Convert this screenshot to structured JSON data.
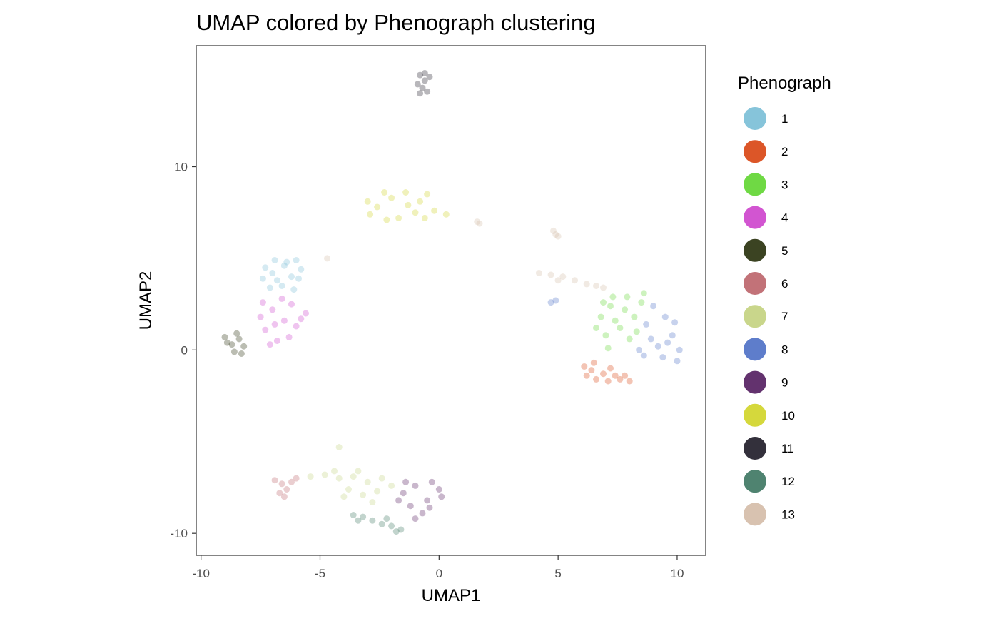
{
  "chart_data": {
    "type": "scatter",
    "title": "UMAP colored by Phenograph clustering",
    "xlabel": "UMAP1",
    "ylabel": "UMAP2",
    "xlim": [
      -10.2,
      11.2
    ],
    "ylim": [
      -11.2,
      16.6
    ],
    "x_ticks": [
      {
        "value": -10,
        "label": "-10"
      },
      {
        "value": -5,
        "label": "-5"
      },
      {
        "value": 0,
        "label": "0"
      },
      {
        "value": 5,
        "label": "5"
      },
      {
        "value": 10,
        "label": "10"
      }
    ],
    "y_ticks": [
      {
        "value": -10,
        "label": "-10"
      },
      {
        "value": 0,
        "label": "0"
      },
      {
        "value": 10,
        "label": "10"
      }
    ],
    "grid": false,
    "point_alpha": 0.35,
    "legend": {
      "title": "Phenograph",
      "position": "right",
      "entries": [
        {
          "label": "1",
          "color": "#86c4da"
        },
        {
          "label": "2",
          "color": "#dc5628"
        },
        {
          "label": "3",
          "color": "#6fd944"
        },
        {
          "label": "4",
          "color": "#d255d1"
        },
        {
          "label": "5",
          "color": "#3b4322"
        },
        {
          "label": "6",
          "color": "#c27278"
        },
        {
          "label": "7",
          "color": "#c9d68b"
        },
        {
          "label": "8",
          "color": "#5e7dcb"
        },
        {
          "label": "9",
          "color": "#63326e"
        },
        {
          "label": "10",
          "color": "#d5d83c"
        },
        {
          "label": "11",
          "color": "#33303b"
        },
        {
          "label": "12",
          "color": "#4f8370"
        },
        {
          "label": "13",
          "color": "#d8c2b0"
        }
      ]
    },
    "series": [
      {
        "name": "1",
        "color": "#86c4da",
        "points": [
          [
            -7.0,
            4.2
          ],
          [
            -6.5,
            4.6
          ],
          [
            -6.0,
            4.9
          ],
          [
            -6.8,
            3.8
          ],
          [
            -6.2,
            4.0
          ],
          [
            -7.3,
            4.5
          ],
          [
            -5.8,
            4.4
          ],
          [
            -6.6,
            3.5
          ],
          [
            -6.4,
            4.8
          ],
          [
            -7.1,
            3.4
          ],
          [
            -5.9,
            3.9
          ],
          [
            -6.9,
            4.9
          ],
          [
            -6.1,
            3.3
          ],
          [
            -7.4,
            3.9
          ]
        ]
      },
      {
        "name": "2",
        "color": "#dc5628",
        "points": [
          [
            6.2,
            -1.4
          ],
          [
            6.6,
            -1.6
          ],
          [
            7.1,
            -1.7
          ],
          [
            7.6,
            -1.6
          ],
          [
            8.0,
            -1.7
          ],
          [
            6.4,
            -1.1
          ],
          [
            6.9,
            -1.3
          ],
          [
            7.4,
            -1.4
          ],
          [
            6.1,
            -0.9
          ],
          [
            7.8,
            -1.4
          ],
          [
            6.5,
            -0.7
          ],
          [
            7.2,
            -1.0
          ]
        ]
      },
      {
        "name": "3",
        "color": "#6fd944",
        "points": [
          [
            6.8,
            1.8
          ],
          [
            7.2,
            2.4
          ],
          [
            7.6,
            1.2
          ],
          [
            7.9,
            2.9
          ],
          [
            8.2,
            1.8
          ],
          [
            8.5,
            2.6
          ],
          [
            7.0,
            0.8
          ],
          [
            7.4,
            1.6
          ],
          [
            8.0,
            0.6
          ],
          [
            8.6,
            3.1
          ],
          [
            7.3,
            2.9
          ],
          [
            6.6,
            1.2
          ],
          [
            7.8,
            2.2
          ],
          [
            8.3,
            1.0
          ],
          [
            7.1,
            0.1
          ],
          [
            6.9,
            2.6
          ]
        ]
      },
      {
        "name": "4",
        "color": "#d255d1",
        "points": [
          [
            -7.0,
            2.2
          ],
          [
            -6.5,
            1.6
          ],
          [
            -6.2,
            2.5
          ],
          [
            -7.3,
            1.1
          ],
          [
            -6.8,
            0.5
          ],
          [
            -6.0,
            1.3
          ],
          [
            -5.6,
            2.0
          ],
          [
            -7.5,
            1.8
          ],
          [
            -6.6,
            2.8
          ],
          [
            -6.3,
            0.7
          ],
          [
            -7.1,
            0.3
          ],
          [
            -5.8,
            1.7
          ],
          [
            -6.9,
            1.4
          ],
          [
            -7.4,
            2.6
          ]
        ]
      },
      {
        "name": "5",
        "color": "#3b4322",
        "points": [
          [
            -9.0,
            0.7
          ],
          [
            -8.7,
            0.3
          ],
          [
            -8.4,
            0.6
          ],
          [
            -8.6,
            -0.1
          ],
          [
            -8.2,
            0.2
          ],
          [
            -8.9,
            0.4
          ],
          [
            -8.5,
            0.9
          ],
          [
            -8.3,
            -0.2
          ]
        ]
      },
      {
        "name": "6",
        "color": "#c27278",
        "points": [
          [
            -6.9,
            -7.1
          ],
          [
            -6.6,
            -7.3
          ],
          [
            -6.4,
            -7.6
          ],
          [
            -6.2,
            -7.2
          ],
          [
            -6.7,
            -7.8
          ],
          [
            -6.5,
            -8.0
          ],
          [
            -6.0,
            -7.0
          ]
        ]
      },
      {
        "name": "7",
        "color": "#c9d68b",
        "points": [
          [
            -4.8,
            -6.8
          ],
          [
            -4.2,
            -7.0
          ],
          [
            -3.6,
            -6.9
          ],
          [
            -3.0,
            -7.2
          ],
          [
            -2.4,
            -7.0
          ],
          [
            -3.8,
            -7.6
          ],
          [
            -3.2,
            -7.9
          ],
          [
            -2.6,
            -7.7
          ],
          [
            -4.4,
            -6.6
          ],
          [
            -3.4,
            -6.6
          ],
          [
            -2.0,
            -7.4
          ],
          [
            -2.8,
            -8.3
          ],
          [
            -4.0,
            -8.0
          ],
          [
            -5.4,
            -6.9
          ],
          [
            -4.2,
            -5.3
          ]
        ]
      },
      {
        "name": "8",
        "color": "#5e7dcb",
        "points": [
          [
            9.0,
            2.4
          ],
          [
            9.5,
            1.8
          ],
          [
            9.8,
            0.8
          ],
          [
            9.2,
            0.2
          ],
          [
            8.7,
            1.4
          ],
          [
            10.1,
            0.0
          ],
          [
            9.4,
            -0.4
          ],
          [
            8.9,
            0.6
          ],
          [
            9.9,
            1.5
          ],
          [
            8.4,
            0.0
          ],
          [
            10.0,
            -0.6
          ],
          [
            9.6,
            0.4
          ],
          [
            8.6,
            -0.3
          ],
          [
            4.7,
            2.6
          ],
          [
            4.9,
            2.7
          ]
        ]
      },
      {
        "name": "9",
        "color": "#63326e",
        "points": [
          [
            -1.5,
            -7.8
          ],
          [
            -1.0,
            -7.4
          ],
          [
            -0.5,
            -8.2
          ],
          [
            0.0,
            -7.6
          ],
          [
            -1.2,
            -8.5
          ],
          [
            -0.7,
            -8.9
          ],
          [
            -1.7,
            -8.2
          ],
          [
            -0.3,
            -7.2
          ],
          [
            -1.0,
            -9.2
          ],
          [
            -0.4,
            -8.6
          ],
          [
            -1.4,
            -7.2
          ],
          [
            0.1,
            -8.0
          ]
        ]
      },
      {
        "name": "10",
        "color": "#d5d83c",
        "points": [
          [
            -2.6,
            7.8
          ],
          [
            -2.0,
            8.3
          ],
          [
            -1.4,
            8.6
          ],
          [
            -0.8,
            8.1
          ],
          [
            -0.2,
            7.6
          ],
          [
            0.3,
            7.4
          ],
          [
            -1.7,
            7.2
          ],
          [
            -1.0,
            7.5
          ],
          [
            -2.9,
            7.4
          ],
          [
            -2.3,
            8.6
          ],
          [
            -0.5,
            8.5
          ],
          [
            -1.3,
            7.9
          ],
          [
            -3.0,
            8.1
          ],
          [
            -0.6,
            7.2
          ],
          [
            -2.2,
            7.1
          ]
        ]
      },
      {
        "name": "11",
        "color": "#33303b",
        "points": [
          [
            -0.8,
            15.0
          ],
          [
            -0.6,
            14.7
          ],
          [
            -0.7,
            14.3
          ],
          [
            -0.5,
            14.1
          ],
          [
            -0.8,
            14.0
          ],
          [
            -0.4,
            14.9
          ],
          [
            -0.6,
            15.1
          ],
          [
            -0.9,
            14.5
          ]
        ]
      },
      {
        "name": "12",
        "color": "#4f8370",
        "points": [
          [
            -3.6,
            -9.0
          ],
          [
            -3.2,
            -9.1
          ],
          [
            -2.8,
            -9.3
          ],
          [
            -2.4,
            -9.5
          ],
          [
            -2.0,
            -9.6
          ],
          [
            -1.6,
            -9.8
          ],
          [
            -3.4,
            -9.3
          ],
          [
            -2.2,
            -9.2
          ],
          [
            -1.8,
            -9.9
          ]
        ]
      },
      {
        "name": "13",
        "color": "#d8c2b0",
        "points": [
          [
            4.2,
            4.2
          ],
          [
            4.7,
            4.1
          ],
          [
            5.2,
            4.0
          ],
          [
            5.7,
            3.8
          ],
          [
            6.2,
            3.6
          ],
          [
            6.6,
            3.5
          ],
          [
            5.0,
            3.8
          ],
          [
            4.8,
            6.5
          ],
          [
            4.9,
            6.3
          ],
          [
            5.0,
            6.2
          ],
          [
            1.6,
            7.0
          ],
          [
            1.7,
            6.9
          ],
          [
            -4.7,
            5.0
          ],
          [
            6.9,
            3.4
          ]
        ]
      }
    ]
  }
}
